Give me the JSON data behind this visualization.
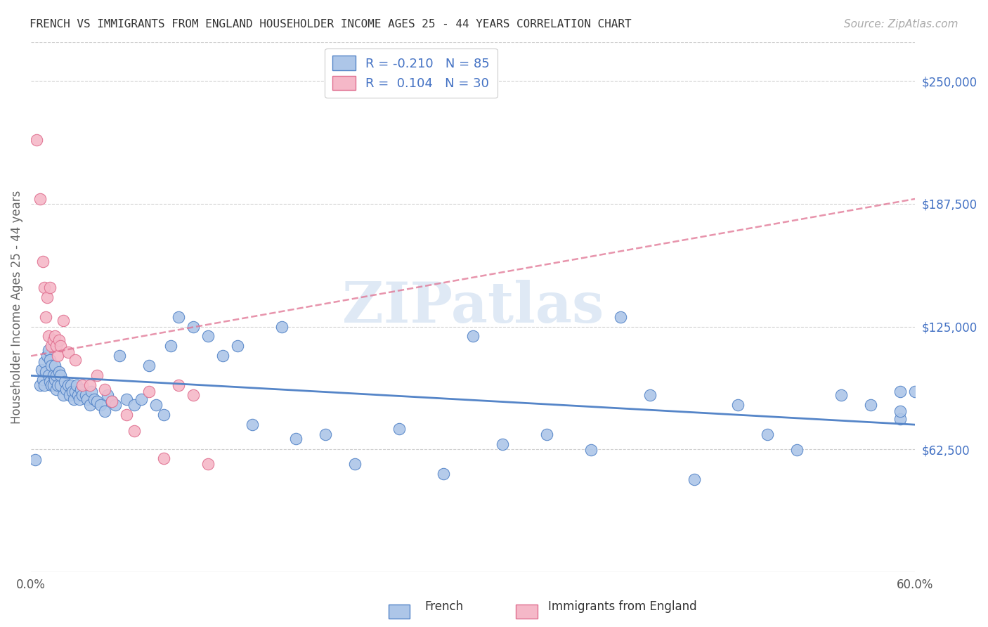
{
  "title": "FRENCH VS IMMIGRANTS FROM ENGLAND HOUSEHOLDER INCOME AGES 25 - 44 YEARS CORRELATION CHART",
  "source": "Source: ZipAtlas.com",
  "ylabel": "Householder Income Ages 25 - 44 years",
  "xlim": [
    0.0,
    0.6
  ],
  "ylim": [
    0,
    270000
  ],
  "xticks": [
    0.0,
    0.1,
    0.2,
    0.3,
    0.4,
    0.5,
    0.6
  ],
  "xticklabels": [
    "0.0%",
    "",
    "",
    "",
    "",
    "",
    "60.0%"
  ],
  "ytick_labels_right": [
    "$62,500",
    "$125,000",
    "$187,500",
    "$250,000"
  ],
  "ytick_values_right": [
    62500,
    125000,
    187500,
    250000
  ],
  "french_R": -0.21,
  "french_N": 85,
  "england_R": 0.104,
  "england_N": 30,
  "french_color": "#adc6e8",
  "england_color": "#f5b8c8",
  "french_line_color": "#5585c8",
  "england_line_color": "#e07090",
  "french_line_intercept": 100000,
  "french_line_slope": -25000,
  "england_line_intercept": 110000,
  "england_line_slope": 80000,
  "french_scatter_x": [
    0.003,
    0.006,
    0.007,
    0.008,
    0.009,
    0.009,
    0.01,
    0.011,
    0.012,
    0.012,
    0.013,
    0.013,
    0.014,
    0.014,
    0.015,
    0.015,
    0.016,
    0.016,
    0.017,
    0.017,
    0.018,
    0.019,
    0.02,
    0.02,
    0.022,
    0.023,
    0.024,
    0.025,
    0.026,
    0.027,
    0.028,
    0.029,
    0.03,
    0.031,
    0.032,
    0.033,
    0.034,
    0.035,
    0.037,
    0.038,
    0.04,
    0.041,
    0.043,
    0.045,
    0.047,
    0.05,
    0.052,
    0.055,
    0.057,
    0.06,
    0.065,
    0.07,
    0.075,
    0.08,
    0.085,
    0.09,
    0.095,
    0.1,
    0.11,
    0.12,
    0.13,
    0.14,
    0.15,
    0.17,
    0.18,
    0.2,
    0.22,
    0.25,
    0.28,
    0.3,
    0.32,
    0.35,
    0.38,
    0.4,
    0.42,
    0.45,
    0.48,
    0.5,
    0.52,
    0.55,
    0.57,
    0.59,
    0.59,
    0.59,
    0.6
  ],
  "french_scatter_y": [
    57000,
    95000,
    103000,
    98000,
    107000,
    95000,
    102000,
    110000,
    100000,
    113000,
    97000,
    108000,
    95000,
    105000,
    100000,
    95000,
    98000,
    105000,
    93000,
    100000,
    95000,
    102000,
    95000,
    100000,
    90000,
    97000,
    93000,
    95000,
    90000,
    95000,
    92000,
    88000,
    92000,
    95000,
    90000,
    88000,
    93000,
    90000,
    90000,
    88000,
    85000,
    92000,
    88000,
    87000,
    85000,
    82000,
    90000,
    87000,
    85000,
    110000,
    88000,
    85000,
    88000,
    105000,
    85000,
    80000,
    115000,
    130000,
    125000,
    120000,
    110000,
    115000,
    75000,
    125000,
    68000,
    70000,
    55000,
    73000,
    50000,
    120000,
    65000,
    70000,
    62000,
    130000,
    90000,
    47000,
    85000,
    70000,
    62000,
    90000,
    85000,
    92000,
    78000,
    82000,
    92000
  ],
  "england_scatter_x": [
    0.004,
    0.006,
    0.008,
    0.009,
    0.01,
    0.011,
    0.012,
    0.013,
    0.014,
    0.015,
    0.016,
    0.017,
    0.018,
    0.019,
    0.02,
    0.022,
    0.025,
    0.03,
    0.035,
    0.04,
    0.045,
    0.05,
    0.055,
    0.065,
    0.07,
    0.08,
    0.09,
    0.1,
    0.11,
    0.12
  ],
  "england_scatter_y": [
    220000,
    190000,
    158000,
    145000,
    130000,
    140000,
    120000,
    145000,
    115000,
    118000,
    120000,
    115000,
    110000,
    118000,
    115000,
    128000,
    112000,
    108000,
    95000,
    95000,
    100000,
    93000,
    87000,
    80000,
    72000,
    92000,
    58000,
    95000,
    90000,
    55000
  ],
  "watermark_text": "ZIPatlas",
  "background_color": "#ffffff",
  "grid_color": "#d0d0d0"
}
